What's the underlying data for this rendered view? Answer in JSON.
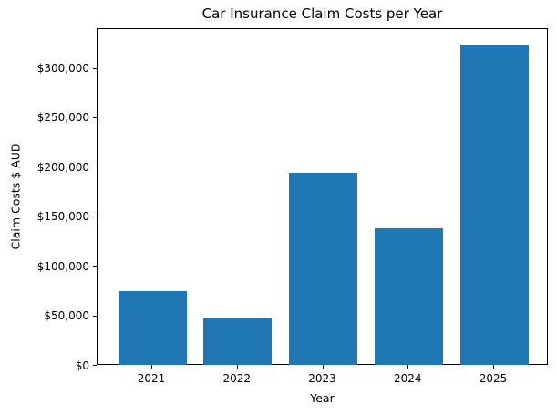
{
  "figure": {
    "background": "#ffffff"
  },
  "chart_data": {
    "type": "bar",
    "title": "Car Insurance Claim Costs per Year",
    "xlabel": "Year",
    "ylabel": "Claim Costs $ AUD",
    "categories": [
      "2021",
      "2022",
      "2023",
      "2024",
      "2025"
    ],
    "values": [
      75000,
      48000,
      195000,
      139000,
      324000
    ],
    "bar_color": "#1f77b4",
    "ylim": [
      0,
      340000
    ],
    "yticks": [
      {
        "value": 0,
        "label": "$0"
      },
      {
        "value": 50000,
        "label": "$50,000"
      },
      {
        "value": 100000,
        "label": "$100,000"
      },
      {
        "value": 150000,
        "label": "$150,000"
      },
      {
        "value": 200000,
        "label": "$200,000"
      },
      {
        "value": 250000,
        "label": "$250,000"
      },
      {
        "value": 300000,
        "label": "$300,000"
      }
    ],
    "grid": false,
    "legend_position": "none"
  }
}
